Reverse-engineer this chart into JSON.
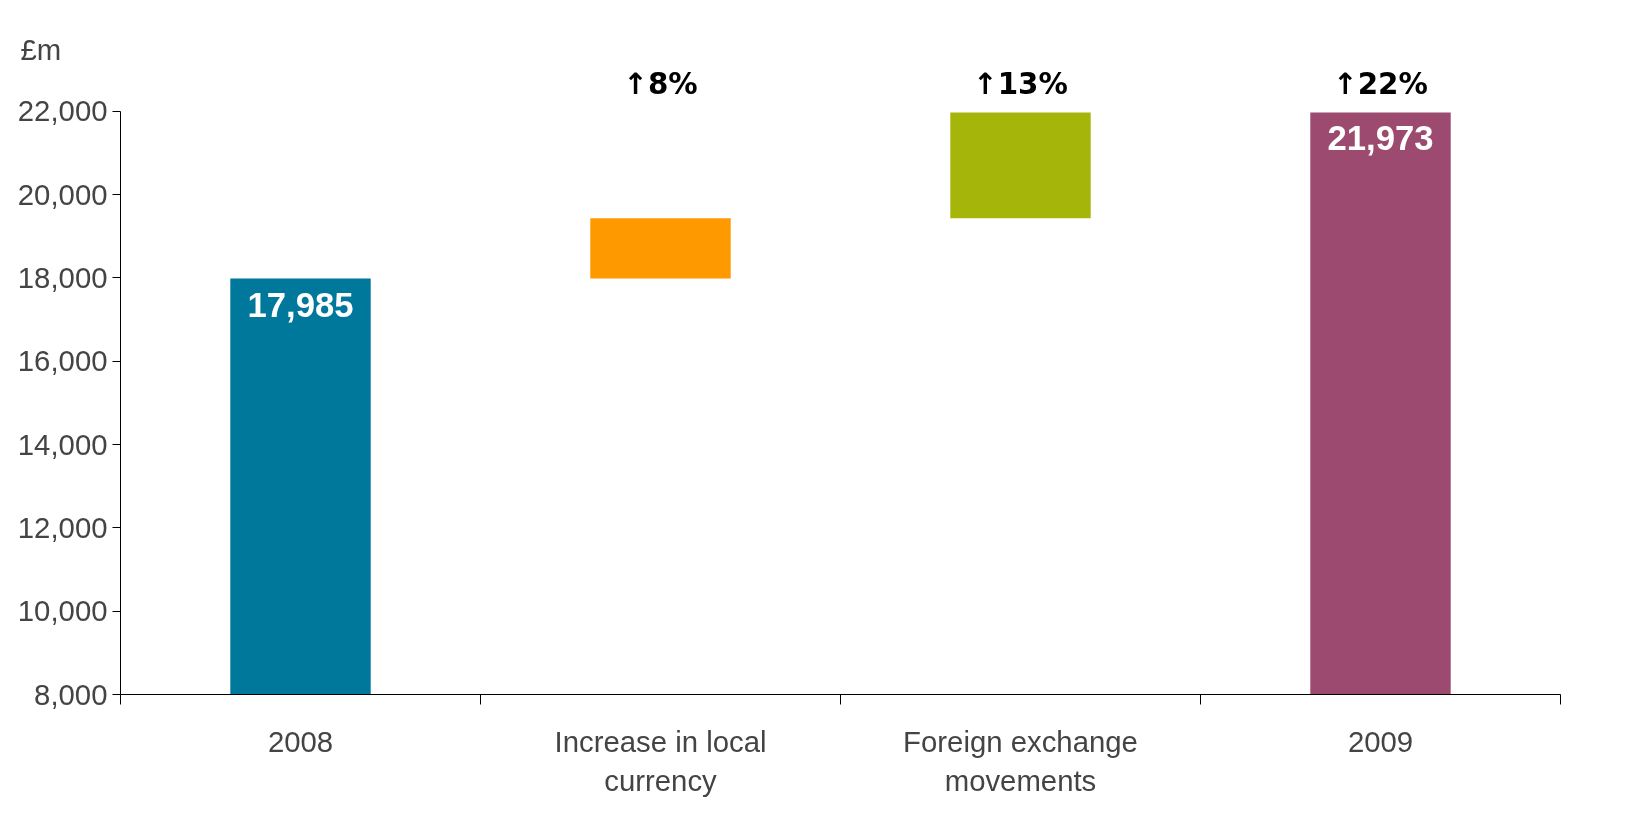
{
  "chart_data": {
    "type": "bar",
    "ylabel": "£m",
    "categories": [
      "2008",
      "Increase in local currency",
      "Foreign exchange movements",
      "2009"
    ],
    "base": [
      8000,
      17985,
      19435,
      8000
    ],
    "values": [
      9985,
      1450,
      2538,
      13973
    ],
    "colors": [
      "#00789c",
      "#ff9900",
      "#a5b50a",
      "#9c4a70"
    ],
    "value_labels": [
      "17,985",
      null,
      null,
      "21,973"
    ],
    "annotations": [
      "↑8%",
      "↑13%",
      "↑22%"
    ],
    "ylim": [
      8000,
      22000
    ],
    "yticks": [
      {
        "value": 8000,
        "label": "8,000"
      },
      {
        "value": 10000,
        "label": "10,000"
      },
      {
        "value": 12000,
        "label": "12,000"
      },
      {
        "value": 14000,
        "label": "14,000"
      },
      {
        "value": 16000,
        "label": "16,000"
      },
      {
        "value": 18000,
        "label": "18,000"
      },
      {
        "value": 20000,
        "label": "20,000"
      },
      {
        "value": 22000,
        "label": "22,000"
      }
    ],
    "grid": false
  }
}
